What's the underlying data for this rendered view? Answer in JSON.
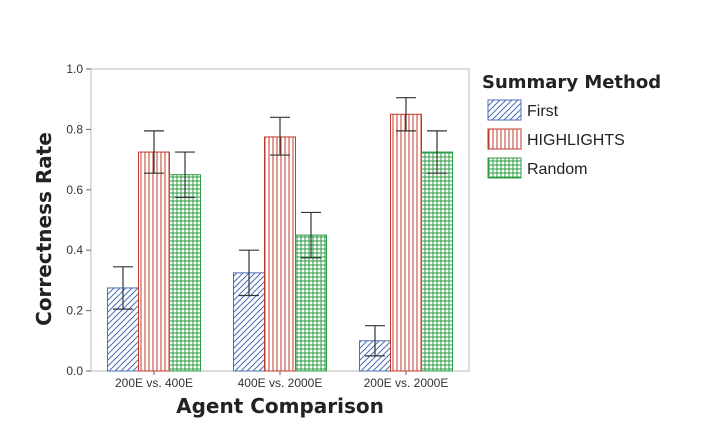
{
  "chart_data": {
    "type": "bar",
    "xlabel": "Agent Comparison",
    "ylabel": "Correctness Rate",
    "ylim": [
      0,
      1
    ],
    "yticks": [
      "0.0",
      "0.2",
      "0.4",
      "0.6",
      "0.8",
      "1.0"
    ],
    "categories": [
      "200E vs. 400E",
      "400E vs. 2000E",
      "200E vs. 2000E"
    ],
    "legend_title": "Summary Method",
    "legend_position": "right",
    "grid": false,
    "series": [
      {
        "name": "First",
        "color": "#4a6fb5",
        "pattern": "diagonal",
        "values": [
          0.275,
          0.325,
          0.1
        ],
        "error_low": [
          0.205,
          0.25,
          0.05
        ],
        "error_high": [
          0.345,
          0.4,
          0.15
        ]
      },
      {
        "name": "HIGHLIGHTS",
        "color": "#c0392b",
        "pattern": "vertical",
        "values": [
          0.725,
          0.775,
          0.85
        ],
        "error_low": [
          0.655,
          0.715,
          0.795
        ],
        "error_high": [
          0.795,
          0.84,
          0.905
        ]
      },
      {
        "name": "Random",
        "color": "#2e9e44",
        "pattern": "grid",
        "values": [
          0.65,
          0.45,
          0.725
        ],
        "error_low": [
          0.575,
          0.375,
          0.655
        ],
        "error_high": [
          0.725,
          0.525,
          0.795
        ]
      }
    ]
  }
}
